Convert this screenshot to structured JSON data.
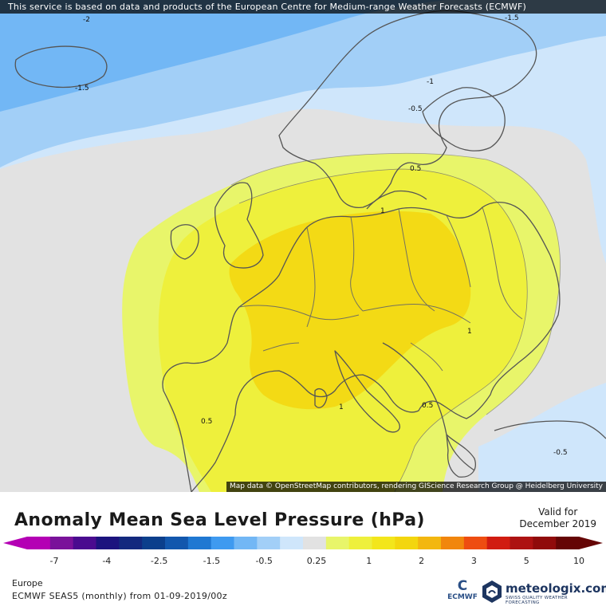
{
  "header": {
    "note": "This service is based on data and products of the European Centre for Medium-range Weather Forecasts (ECMWF)"
  },
  "map": {
    "attribution": "Map data © OpenStreetMap contributors, rendering GIScience Research Group @ Heidelberg University",
    "contour_labels": [
      "-2",
      "-1.5",
      "-1.5",
      "-1",
      "-0.5",
      "0.5",
      "1",
      "1",
      "1",
      "0.5",
      "0.5",
      "-0.5"
    ]
  },
  "legend": {
    "title": "Anomaly Mean Sea Level Pressure (hPa)",
    "valid_line1": "Valid for",
    "valid_line2": "December 2019",
    "colors": [
      "#b400b4",
      "#7a129a",
      "#4a0b8f",
      "#1c137e",
      "#13297e",
      "#0b3f8c",
      "#1257ad",
      "#1f78d2",
      "#3e9af0",
      "#72b7f5",
      "#a2cff7",
      "#cfe6fb",
      "#e2e2e2",
      "#e8f56a",
      "#eef03c",
      "#f3e61b",
      "#f3d60e",
      "#f3b70f",
      "#f1860d",
      "#ee4d11",
      "#d11c11",
      "#ad1212",
      "#900b0b",
      "#650505"
    ],
    "tick_labels": [
      "-7",
      "-4",
      "-2.5",
      "-1.5",
      "-0.5",
      "0.25",
      "1",
      "2",
      "3",
      "5",
      "10"
    ]
  },
  "footer": {
    "region": "Europe",
    "run": "ECMWF SEAS5 (monthly) from 01-09-2019/00z",
    "ecmwf_label": "ECMWF",
    "brand_name": "meteologix.com",
    "brand_tagline": "SWISS QUALITY WEATHER FORECASTING"
  }
}
